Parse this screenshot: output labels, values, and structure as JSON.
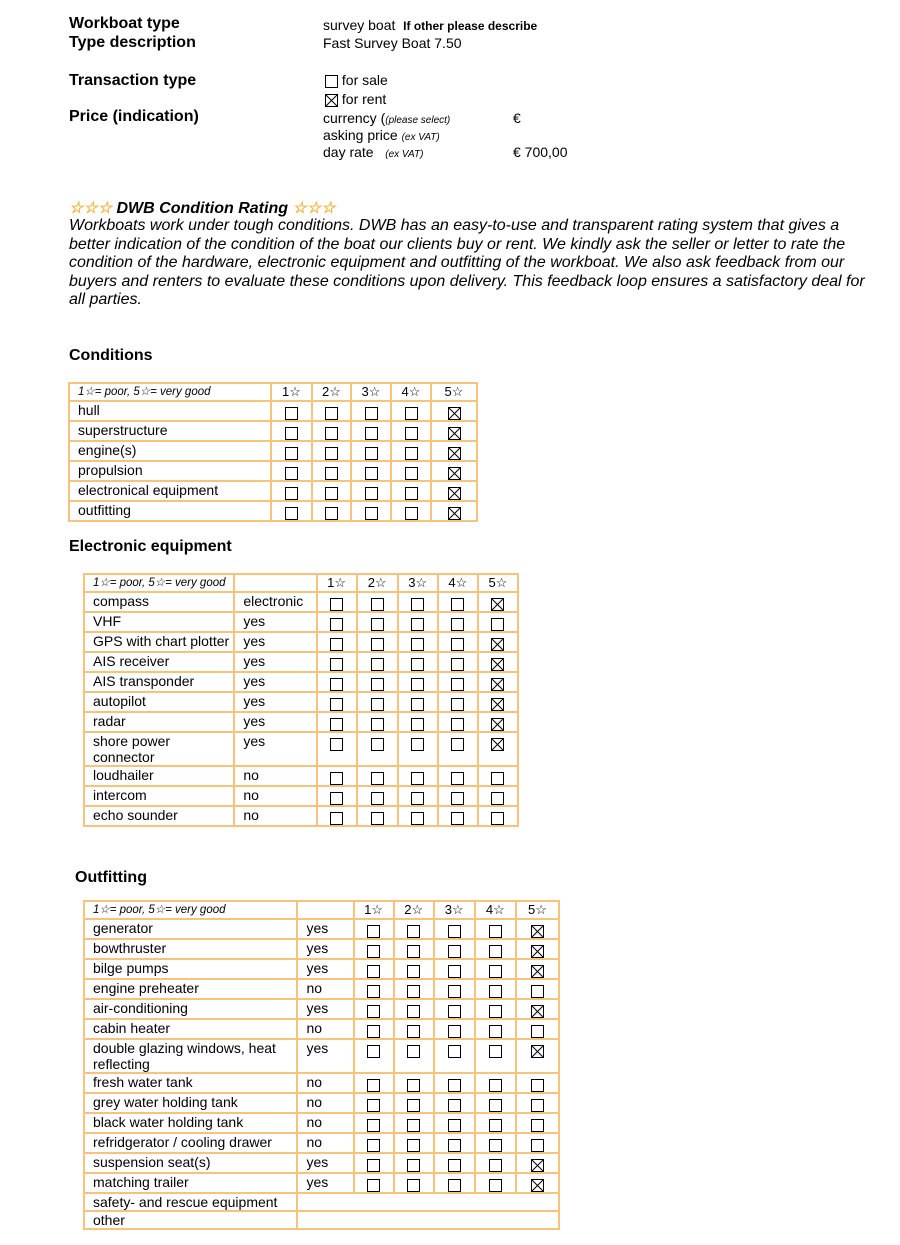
{
  "header": {
    "workboat_type_label": "Workboat type",
    "workboat_type_value": "survey boat",
    "other_note": "If other please describe",
    "type_description_label": "Type description",
    "type_description_value": "Fast Survey Boat 7.50",
    "transaction_type_label": "Transaction type",
    "transaction_options": [
      {
        "label": "for sale",
        "checked": false
      },
      {
        "label": "for rent",
        "checked": true
      }
    ],
    "price_label": "Price (indication)",
    "currency_label": "currency (",
    "currency_hint": "(please select)",
    "currency_value": "€",
    "asking_price_label": "asking price",
    "asking_price_hint": "(ex VAT)",
    "day_rate_label": "day rate",
    "day_rate_hint": "(ex VAT)",
    "day_rate_value": "€ 700,00"
  },
  "rating": {
    "stars": "☆☆☆",
    "title": "DWB Condition Rating",
    "intro": "Workboats work under tough conditions. DWB has an easy-to-use and transparent rating system that gives a better indication of the condition of the boat our clients buy or rent. We kindly ask the seller or letter to rate the condition of the hardware, electronic equipment and outfitting of the workboat. We also ask feedback from our buyers and renters to evaluate these conditions upon delivery. This feedback loop ensures a satisfactory deal for all parties."
  },
  "star_color": "#f2b84b",
  "border_color": "#f7c27c",
  "legend": "1☆= poor, 5☆= very good",
  "rating_columns": [
    "1☆",
    "2☆",
    "3☆",
    "4☆",
    "5☆"
  ],
  "conditions": {
    "title": "Conditions",
    "rows": [
      {
        "label": "hull",
        "rating": 5
      },
      {
        "label": "superstructure",
        "rating": 5
      },
      {
        "label": "engine(s)",
        "rating": 5
      },
      {
        "label": "propulsion",
        "rating": 5
      },
      {
        "label": "electronical equipment",
        "rating": 5
      },
      {
        "label": "outfitting",
        "rating": 5
      }
    ]
  },
  "electronic": {
    "title": "Electronic equipment",
    "rows": [
      {
        "label": "compass",
        "value": "electronic",
        "rating": 5
      },
      {
        "label": "VHF",
        "value": "yes",
        "rating": 0
      },
      {
        "label": "GPS with chart plotter",
        "value": "yes",
        "rating": 5
      },
      {
        "label": "AIS receiver",
        "value": "yes",
        "rating": 5
      },
      {
        "label": "AIS transponder",
        "value": "yes",
        "rating": 5
      },
      {
        "label": "autopilot",
        "value": "yes",
        "rating": 5
      },
      {
        "label": "radar",
        "value": "yes",
        "rating": 5
      },
      {
        "label": "shore power connector",
        "value": "yes",
        "rating": 5
      },
      {
        "label": "loudhailer",
        "value": "no",
        "rating": 0
      },
      {
        "label": "intercom",
        "value": "no",
        "rating": 0
      },
      {
        "label": "echo sounder",
        "value": "no",
        "rating": 0
      }
    ]
  },
  "outfitting": {
    "title": "Outfitting",
    "rows": [
      {
        "label": "generator",
        "value": "yes",
        "rating": 5
      },
      {
        "label": "bowthruster",
        "value": "yes",
        "rating": 5
      },
      {
        "label": "bilge pumps",
        "value": "yes",
        "rating": 5
      },
      {
        "label": "engine preheater",
        "value": "no",
        "rating": 0
      },
      {
        "label": "air-conditioning",
        "value": "yes",
        "rating": 5
      },
      {
        "label": "cabin heater",
        "value": "no",
        "rating": 0
      },
      {
        "label": "double glazing windows, heat reflecting",
        "value": "yes",
        "rating": 5
      },
      {
        "label": "fresh water tank",
        "value": "no",
        "rating": 0
      },
      {
        "label": "grey water holding tank",
        "value": "no",
        "rating": 0
      },
      {
        "label": "black water holding tank",
        "value": "no",
        "rating": 0
      },
      {
        "label": "refridgerator / cooling drawer",
        "value": "no",
        "rating": 0
      },
      {
        "label": "suspension seat(s)",
        "value": "yes",
        "rating": 5
      },
      {
        "label": "matching trailer",
        "value": "yes",
        "rating": 5
      }
    ],
    "extra_rows": [
      "safety- and rescue equipment",
      "other"
    ]
  }
}
